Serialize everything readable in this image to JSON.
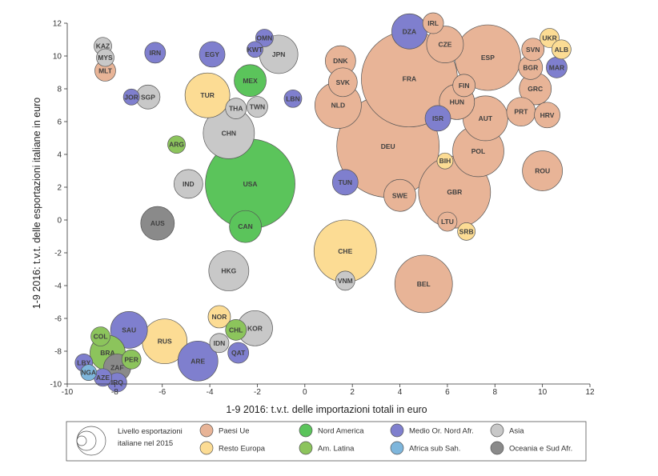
{
  "chart_data": {
    "type": "scatter",
    "xlabel": "1-9 2016: t.v.t. delle importazioni totali in euro",
    "ylabel": "1-9 2016: t.v.t. delle esportazioni italiane in euro",
    "xlim": [
      -10,
      12
    ],
    "ylim": [
      -10,
      12
    ],
    "x_ticks": [
      "-10",
      "-8",
      "-6",
      "-4",
      "-2",
      "0",
      "2",
      "4",
      "6",
      "8",
      "10",
      "12"
    ],
    "y_ticks": [
      "-10",
      "-8",
      "-6",
      "-4",
      "-2",
      "0",
      "2",
      "4",
      "6",
      "8",
      "10",
      "12"
    ],
    "size_legend_label": [
      "Livello esportazioni",
      "italiane nel 2015"
    ],
    "groups": [
      {
        "key": "ue",
        "name": "Paesi Ue",
        "color": "#e8b497"
      },
      {
        "key": "re",
        "name": "Resto Europa",
        "color": "#fcdc94"
      },
      {
        "key": "na",
        "name": "Nord America",
        "color": "#5bc45b"
      },
      {
        "key": "al",
        "name": "Am. Latina",
        "color": "#8cc45c"
      },
      {
        "key": "mo",
        "name": "Medio Or. Nord Afr.",
        "color": "#7f7fce"
      },
      {
        "key": "ass",
        "name": "Africa sub Sah.",
        "color": "#7eb6dc"
      },
      {
        "key": "as",
        "name": "Asia",
        "color": "#c8c8c8"
      },
      {
        "key": "oc",
        "name": "Oceania e Sud Afr.",
        "color": "#8a8a8a"
      }
    ],
    "points": [
      {
        "label": "KAZ",
        "x": -8.5,
        "y": 10.6,
        "size": 11,
        "group": "as"
      },
      {
        "label": "MYS",
        "x": -8.4,
        "y": 9.9,
        "size": 11,
        "group": "as"
      },
      {
        "label": "MLT",
        "x": -8.4,
        "y": 9.1,
        "size": 13,
        "group": "ue"
      },
      {
        "label": "IRN",
        "x": -6.3,
        "y": 10.2,
        "size": 13,
        "group": "mo"
      },
      {
        "label": "EGY",
        "x": -3.9,
        "y": 10.1,
        "size": 16,
        "group": "mo"
      },
      {
        "label": "KWT",
        "x": -2.1,
        "y": 10.4,
        "size": 10,
        "group": "mo"
      },
      {
        "label": "OMN",
        "x": -1.7,
        "y": 11.1,
        "size": 11,
        "group": "mo"
      },
      {
        "label": "JPN",
        "x": -1.1,
        "y": 10.1,
        "size": 24,
        "group": "as"
      },
      {
        "label": "MEX",
        "x": -2.3,
        "y": 8.5,
        "size": 20,
        "group": "na"
      },
      {
        "label": "JOR",
        "x": -7.3,
        "y": 7.5,
        "size": 10,
        "group": "mo"
      },
      {
        "label": "SGP",
        "x": -6.6,
        "y": 7.5,
        "size": 15,
        "group": "as"
      },
      {
        "label": "TUR",
        "x": -4.1,
        "y": 7.6,
        "size": 28,
        "group": "re"
      },
      {
        "label": "THA",
        "x": -2.9,
        "y": 6.8,
        "size": 13,
        "group": "as"
      },
      {
        "label": "TWN",
        "x": -2.0,
        "y": 6.9,
        "size": 13,
        "group": "as"
      },
      {
        "label": "LBN",
        "x": -0.5,
        "y": 7.4,
        "size": 11,
        "group": "mo"
      },
      {
        "label": "CHN",
        "x": -3.2,
        "y": 5.3,
        "size": 32,
        "group": "as"
      },
      {
        "label": "ARG",
        "x": -5.4,
        "y": 4.6,
        "size": 11,
        "group": "al"
      },
      {
        "label": "IND",
        "x": -4.9,
        "y": 2.2,
        "size": 18,
        "group": "as"
      },
      {
        "label": "USA",
        "x": -2.3,
        "y": 2.2,
        "size": 56,
        "group": "na"
      },
      {
        "label": "CAN",
        "x": -2.5,
        "y": -0.4,
        "size": 20,
        "group": "na"
      },
      {
        "label": "AUS",
        "x": -6.2,
        "y": -0.2,
        "size": 21,
        "group": "oc"
      },
      {
        "label": "HKG",
        "x": -3.2,
        "y": -3.1,
        "size": 25,
        "group": "as"
      },
      {
        "label": "CHE",
        "x": 1.7,
        "y": -1.9,
        "size": 39,
        "group": "re"
      },
      {
        "label": "VNM",
        "x": 1.7,
        "y": -3.7,
        "size": 12,
        "group": "as"
      },
      {
        "label": "BEL",
        "x": 5.0,
        "y": -3.9,
        "size": 36,
        "group": "ue"
      },
      {
        "label": "NOR",
        "x": -3.6,
        "y": -5.9,
        "size": 14,
        "group": "re"
      },
      {
        "label": "CHL",
        "x": -2.9,
        "y": -6.7,
        "size": 13,
        "group": "al"
      },
      {
        "label": "KOR",
        "x": -2.1,
        "y": -6.6,
        "size": 22,
        "group": "as"
      },
      {
        "label": "IDN",
        "x": -3.6,
        "y": -7.5,
        "size": 12,
        "group": "as"
      },
      {
        "label": "QAT",
        "x": -2.8,
        "y": -8.1,
        "size": 13,
        "group": "mo"
      },
      {
        "label": "ARE",
        "x": -4.5,
        "y": -8.6,
        "size": 25,
        "group": "mo"
      },
      {
        "label": "RUS",
        "x": -5.9,
        "y": -7.4,
        "size": 28,
        "group": "re"
      },
      {
        "label": "SAU",
        "x": -7.4,
        "y": -6.7,
        "size": 23,
        "group": "mo"
      },
      {
        "label": "COL",
        "x": -8.6,
        "y": -7.1,
        "size": 12,
        "group": "al"
      },
      {
        "label": "BRA",
        "x": -8.3,
        "y": -8.1,
        "size": 22,
        "group": "al"
      },
      {
        "label": "PER",
        "x": -7.3,
        "y": -8.5,
        "size": 12,
        "group": "al"
      },
      {
        "label": "ZAF",
        "x": -7.9,
        "y": -9.0,
        "size": 17,
        "group": "oc"
      },
      {
        "label": "LBY",
        "x": -9.3,
        "y": -8.7,
        "size": 11,
        "group": "mo"
      },
      {
        "label": "NGA",
        "x": -9.1,
        "y": -9.3,
        "size": 10,
        "group": "ass"
      },
      {
        "label": "AZE",
        "x": -8.5,
        "y": -9.6,
        "size": 11,
        "group": "mo"
      },
      {
        "label": "IRQ",
        "x": -7.9,
        "y": -9.9,
        "size": 12,
        "group": "mo"
      },
      {
        "label": "IRL",
        "x": 5.4,
        "y": 12.0,
        "size": 13,
        "group": "ue"
      },
      {
        "label": "DZA",
        "x": 4.4,
        "y": 11.5,
        "size": 22,
        "group": "mo"
      },
      {
        "label": "CZE",
        "x": 5.9,
        "y": 10.7,
        "size": 23,
        "group": "ue"
      },
      {
        "label": "ESP",
        "x": 7.7,
        "y": 9.9,
        "size": 41,
        "group": "ue"
      },
      {
        "label": "DNK",
        "x": 1.5,
        "y": 9.7,
        "size": 19,
        "group": "ue"
      },
      {
        "label": "SVK",
        "x": 1.6,
        "y": 8.4,
        "size": 18,
        "group": "ue"
      },
      {
        "label": "FRA",
        "x": 4.4,
        "y": 8.6,
        "size": 60,
        "group": "ue"
      },
      {
        "label": "FIN",
        "x": 6.7,
        "y": 8.2,
        "size": 14,
        "group": "ue"
      },
      {
        "label": "HUN",
        "x": 6.4,
        "y": 7.2,
        "size": 22,
        "group": "ue"
      },
      {
        "label": "NLD",
        "x": 1.4,
        "y": 7.0,
        "size": 29,
        "group": "ue"
      },
      {
        "label": "ISR",
        "x": 5.6,
        "y": 6.2,
        "size": 16,
        "group": "mo"
      },
      {
        "label": "AUT",
        "x": 7.6,
        "y": 6.2,
        "size": 28,
        "group": "ue"
      },
      {
        "label": "DEU",
        "x": 3.5,
        "y": 4.5,
        "size": 64,
        "group": "ue"
      },
      {
        "label": "POL",
        "x": 7.3,
        "y": 4.2,
        "size": 32,
        "group": "ue"
      },
      {
        "label": "BIH",
        "x": 5.9,
        "y": 3.6,
        "size": 10,
        "group": "re"
      },
      {
        "label": "TUN",
        "x": 1.7,
        "y": 2.3,
        "size": 16,
        "group": "mo"
      },
      {
        "label": "SWE",
        "x": 4.0,
        "y": 1.5,
        "size": 20,
        "group": "ue"
      },
      {
        "label": "GBR",
        "x": 6.3,
        "y": 1.7,
        "size": 45,
        "group": "ue"
      },
      {
        "label": "LTU",
        "x": 6.0,
        "y": -0.1,
        "size": 12,
        "group": "ue"
      },
      {
        "label": "SRB",
        "x": 6.8,
        "y": -0.7,
        "size": 11,
        "group": "re"
      },
      {
        "label": "UKR",
        "x": 10.3,
        "y": 11.1,
        "size": 12,
        "group": "re"
      },
      {
        "label": "ALB",
        "x": 10.8,
        "y": 10.4,
        "size": 12,
        "group": "re"
      },
      {
        "label": "SVN",
        "x": 9.6,
        "y": 10.4,
        "size": 14,
        "group": "ue"
      },
      {
        "label": "BGR",
        "x": 9.5,
        "y": 9.3,
        "size": 15,
        "group": "ue"
      },
      {
        "label": "MAR",
        "x": 10.6,
        "y": 9.3,
        "size": 13,
        "group": "mo"
      },
      {
        "label": "GRC",
        "x": 9.7,
        "y": 8.0,
        "size": 20,
        "group": "ue"
      },
      {
        "label": "PRT",
        "x": 9.1,
        "y": 6.6,
        "size": 18,
        "group": "ue"
      },
      {
        "label": "HRV",
        "x": 10.2,
        "y": 6.4,
        "size": 16,
        "group": "ue"
      },
      {
        "label": "ROU",
        "x": 10.0,
        "y": 3.0,
        "size": 25,
        "group": "ue"
      }
    ]
  }
}
